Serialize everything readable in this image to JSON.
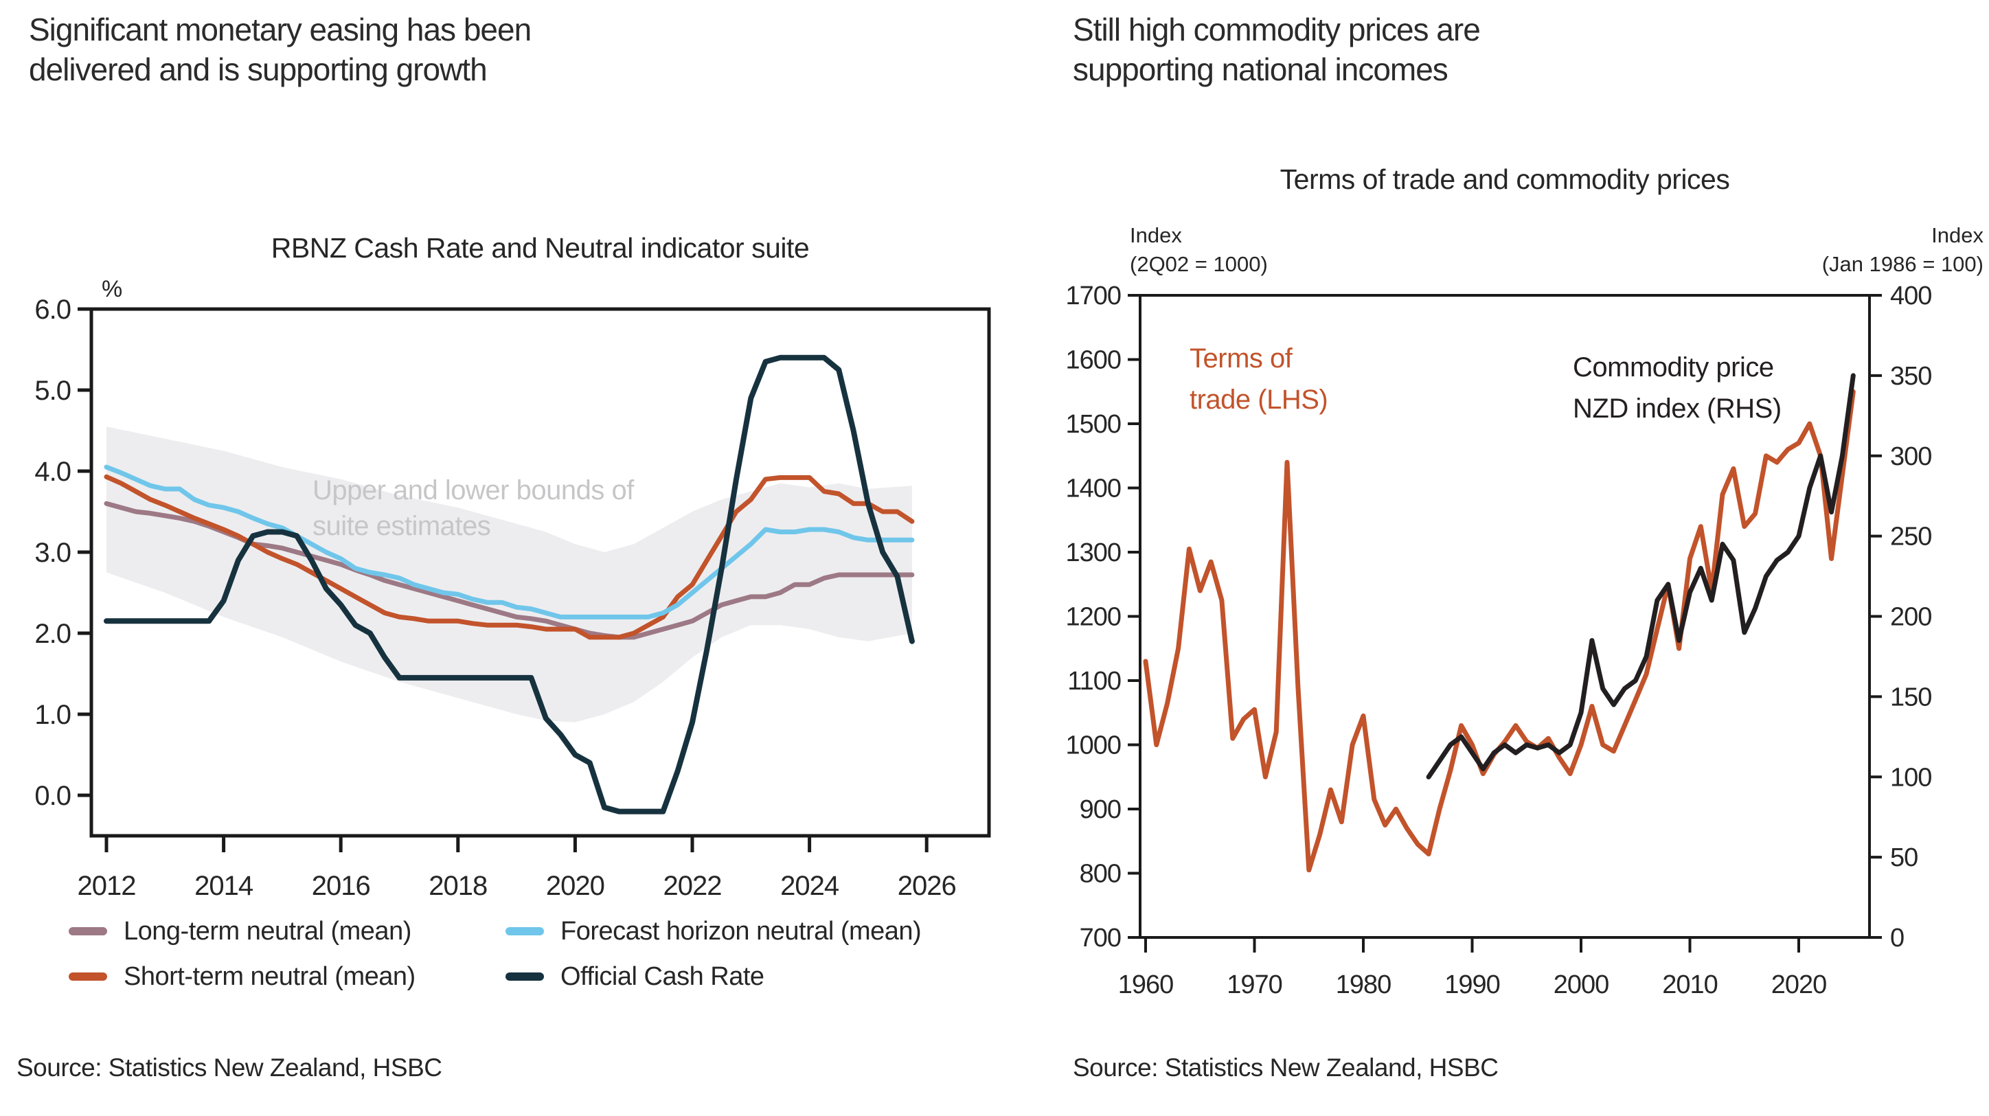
{
  "left_panel": {
    "title_line1": "Significant monetary easing has been",
    "title_line2": "delivered and is supporting growth",
    "source": "Source: Statistics New Zealand, HSBC"
  },
  "right_panel": {
    "title_line1": "Still high commodity prices are",
    "title_line2": "supporting national incomes",
    "source": "Source: Statistics New Zealand, HSBC"
  },
  "colors": {
    "long_term_neutral": "#9d7985",
    "short_term_neutral": "#c2532b",
    "forecast_horizon_neutral": "#70c6ea",
    "official_cash_rate": "#17323f",
    "terms_of_trade": "#c2532b",
    "commodity_index": "#231f20",
    "band_fill": "#ededef",
    "band_text": "#c6c6c8",
    "axis": "#1a1a1a"
  },
  "chart_data": [
    {
      "type": "line",
      "title": "RBNZ Cash Rate and Neutral indicator suite",
      "ylabel": "%",
      "ylim": [
        -0.5,
        6.0
      ],
      "y_ticks": [
        "6.0",
        "5.0",
        "4.0",
        "3.0",
        "2.0",
        "1.0",
        "0.0"
      ],
      "xlim": [
        2012,
        2027
      ],
      "x_ticks": [
        2012,
        2014,
        2016,
        2018,
        2020,
        2022,
        2024,
        2026
      ],
      "grid": false,
      "legend_position": "bottom",
      "band": {
        "label_line1": "Upper and lower bounds of",
        "label_line2": "suite estimates",
        "color": "#ededef",
        "x": [
          2012,
          2013,
          2014,
          2015,
          2016,
          2017,
          2018,
          2019,
          2019.5,
          2020,
          2020.5,
          2021,
          2021.5,
          2022,
          2022.5,
          2023,
          2023.5,
          2024,
          2024.5,
          2025,
          2025.75
        ],
        "upper": [
          4.55,
          4.4,
          4.25,
          4.05,
          3.9,
          3.7,
          3.55,
          3.35,
          3.25,
          3.1,
          3.0,
          3.1,
          3.3,
          3.5,
          3.65,
          3.75,
          3.85,
          3.8,
          3.85,
          3.78,
          3.82
        ],
        "lower": [
          2.75,
          2.5,
          2.2,
          1.95,
          1.65,
          1.4,
          1.2,
          1.0,
          0.92,
          0.9,
          1.0,
          1.15,
          1.4,
          1.7,
          1.95,
          2.1,
          2.1,
          2.05,
          1.95,
          1.9,
          2.0
        ]
      },
      "x_quarterly": [
        2012.0,
        2012.25,
        2012.5,
        2012.75,
        2013.0,
        2013.25,
        2013.5,
        2013.75,
        2014.0,
        2014.25,
        2014.5,
        2014.75,
        2015.0,
        2015.25,
        2015.5,
        2015.75,
        2016.0,
        2016.25,
        2016.5,
        2016.75,
        2017.0,
        2017.25,
        2017.5,
        2017.75,
        2018.0,
        2018.25,
        2018.5,
        2018.75,
        2019.0,
        2019.25,
        2019.5,
        2019.75,
        2020.0,
        2020.25,
        2020.5,
        2020.75,
        2021.0,
        2021.25,
        2021.5,
        2021.75,
        2022.0,
        2022.25,
        2022.5,
        2022.75,
        2023.0,
        2023.25,
        2023.5,
        2023.75,
        2024.0,
        2024.25,
        2024.5,
        2024.75,
        2025.0,
        2025.25,
        2025.5,
        2025.75
      ],
      "series": [
        {
          "name": "Long-term neutral (mean)",
          "color": "#9d7985",
          "values": [
            3.6,
            3.55,
            3.5,
            3.48,
            3.45,
            3.42,
            3.38,
            3.32,
            3.25,
            3.18,
            3.1,
            3.08,
            3.05,
            3.0,
            2.95,
            2.9,
            2.85,
            2.78,
            2.72,
            2.65,
            2.6,
            2.55,
            2.5,
            2.45,
            2.4,
            2.35,
            2.3,
            2.25,
            2.2,
            2.18,
            2.15,
            2.1,
            2.05,
            2.0,
            1.97,
            1.95,
            1.95,
            2.0,
            2.05,
            2.1,
            2.15,
            2.25,
            2.35,
            2.4,
            2.45,
            2.45,
            2.5,
            2.6,
            2.6,
            2.68,
            2.72,
            2.72,
            2.72,
            2.72,
            2.72,
            2.72
          ]
        },
        {
          "name": "Short-term neutral (mean)",
          "color": "#c2532b",
          "values": [
            3.93,
            3.85,
            3.75,
            3.65,
            3.58,
            3.5,
            3.42,
            3.35,
            3.28,
            3.2,
            3.1,
            3.0,
            2.92,
            2.85,
            2.75,
            2.65,
            2.55,
            2.45,
            2.35,
            2.25,
            2.2,
            2.18,
            2.15,
            2.15,
            2.15,
            2.12,
            2.1,
            2.1,
            2.1,
            2.08,
            2.05,
            2.05,
            2.05,
            1.95,
            1.95,
            1.95,
            2.0,
            2.1,
            2.2,
            2.45,
            2.6,
            2.9,
            3.2,
            3.5,
            3.65,
            3.9,
            3.92,
            3.92,
            3.92,
            3.75,
            3.72,
            3.6,
            3.6,
            3.5,
            3.5,
            3.38
          ]
        },
        {
          "name": "Forecast horizon neutral (mean)",
          "color": "#70c6ea",
          "values": [
            4.05,
            3.98,
            3.9,
            3.82,
            3.78,
            3.78,
            3.65,
            3.58,
            3.55,
            3.5,
            3.42,
            3.35,
            3.3,
            3.2,
            3.1,
            3.0,
            2.92,
            2.8,
            2.75,
            2.72,
            2.68,
            2.6,
            2.55,
            2.5,
            2.48,
            2.42,
            2.38,
            2.38,
            2.32,
            2.3,
            2.25,
            2.2,
            2.2,
            2.2,
            2.2,
            2.2,
            2.2,
            2.2,
            2.25,
            2.35,
            2.5,
            2.65,
            2.8,
            2.95,
            3.1,
            3.28,
            3.25,
            3.25,
            3.28,
            3.28,
            3.25,
            3.18,
            3.15,
            3.15,
            3.15,
            3.15
          ]
        },
        {
          "name": "Official Cash Rate",
          "color": "#17323f",
          "values": [
            2.15,
            2.15,
            2.15,
            2.15,
            2.15,
            2.15,
            2.15,
            2.15,
            2.4,
            2.9,
            3.2,
            3.25,
            3.25,
            3.2,
            2.9,
            2.55,
            2.35,
            2.1,
            2.0,
            1.7,
            1.45,
            1.45,
            1.45,
            1.45,
            1.45,
            1.45,
            1.45,
            1.45,
            1.45,
            1.45,
            0.95,
            0.75,
            0.5,
            0.4,
            -0.15,
            -0.2,
            -0.2,
            -0.2,
            -0.2,
            0.3,
            0.9,
            1.8,
            2.8,
            3.9,
            4.9,
            5.35,
            5.4,
            5.4,
            5.4,
            5.4,
            5.25,
            4.5,
            3.6,
            3.0,
            2.7,
            1.9
          ]
        }
      ]
    },
    {
      "type": "line",
      "title": "Terms of trade and commodity prices",
      "left_axis": {
        "label_line1": "Index",
        "label_line2": "(2Q02 = 1000)",
        "ylim": [
          700,
          1700
        ],
        "ticks": [
          1700,
          1600,
          1500,
          1400,
          1300,
          1200,
          1100,
          1000,
          900,
          800,
          700
        ]
      },
      "right_axis": {
        "label_line1": "Index",
        "label_line2": "(Jan 1986 = 100)",
        "ylim": [
          0,
          400
        ],
        "ticks": [
          400,
          350,
          300,
          250,
          200,
          150,
          100,
          50,
          0
        ]
      },
      "xlim": [
        1959.5,
        2026.6
      ],
      "x_ticks": [
        1960,
        1970,
        1980,
        1990,
        2000,
        2010,
        2020
      ],
      "grid": false,
      "series": [
        {
          "name": "Terms of trade (LHS)",
          "axis": "left",
          "color": "#c2532b",
          "annotation_line1": "Terms of",
          "annotation_line2": "trade (LHS)",
          "years": [
            1960,
            1961,
            1962,
            1963,
            1964,
            1965,
            1966,
            1967,
            1968,
            1969,
            1970,
            1971,
            1972,
            1973,
            1974,
            1975,
            1976,
            1977,
            1978,
            1979,
            1980,
            1981,
            1982,
            1983,
            1984,
            1985,
            1986,
            1987,
            1988,
            1989,
            1990,
            1991,
            1992,
            1993,
            1994,
            1995,
            1996,
            1997,
            1998,
            1999,
            2000,
            2001,
            2002,
            2003,
            2004,
            2005,
            2006,
            2007,
            2008,
            2009,
            2010,
            2011,
            2012,
            2013,
            2014,
            2015,
            2016,
            2017,
            2018,
            2019,
            2020,
            2021,
            2022,
            2023,
            2024,
            2025
          ],
          "values": [
            1130,
            1000,
            1065,
            1150,
            1305,
            1240,
            1285,
            1225,
            1010,
            1040,
            1055,
            950,
            1020,
            1440,
            1090,
            805,
            860,
            930,
            880,
            1000,
            1045,
            915,
            875,
            900,
            870,
            845,
            830,
            900,
            960,
            1030,
            1000,
            955,
            985,
            1005,
            1030,
            1005,
            995,
            1010,
            980,
            955,
            1000,
            1060,
            1000,
            990,
            1030,
            1070,
            1110,
            1180,
            1250,
            1150,
            1290,
            1340,
            1240,
            1390,
            1430,
            1340,
            1360,
            1450,
            1440,
            1460,
            1470,
            1500,
            1450,
            1290,
            1420,
            1550
          ]
        },
        {
          "name": "Commodity price NZD index (RHS)",
          "axis": "right",
          "color": "#231f20",
          "annotation_line1": "Commodity price",
          "annotation_line2": "NZD index (RHS)",
          "years": [
            1986,
            1987,
            1988,
            1989,
            1990,
            1991,
            1992,
            1993,
            1994,
            1995,
            1996,
            1997,
            1998,
            1999,
            2000,
            2001,
            2002,
            2003,
            2004,
            2005,
            2006,
            2007,
            2008,
            2009,
            2010,
            2011,
            2012,
            2013,
            2014,
            2015,
            2016,
            2017,
            2018,
            2019,
            2020,
            2021,
            2022,
            2023,
            2024,
            2025
          ],
          "values": [
            100,
            110,
            120,
            125,
            115,
            105,
            115,
            120,
            115,
            120,
            118,
            120,
            115,
            120,
            140,
            185,
            155,
            145,
            155,
            160,
            175,
            210,
            220,
            185,
            215,
            230,
            210,
            245,
            235,
            190,
            205,
            225,
            235,
            240,
            250,
            280,
            300,
            265,
            300,
            350
          ]
        }
      ]
    }
  ]
}
